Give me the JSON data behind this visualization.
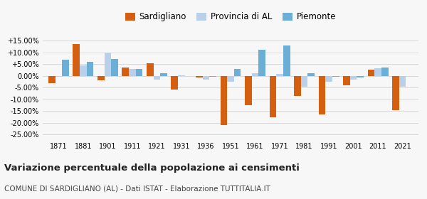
{
  "years": [
    1871,
    1881,
    1901,
    1911,
    1921,
    1931,
    1936,
    1951,
    1961,
    1971,
    1981,
    1991,
    2001,
    2011,
    2021
  ],
  "sardigliano": [
    -3.0,
    13.5,
    -2.0,
    3.5,
    5.2,
    -5.8,
    -0.8,
    -21.0,
    -12.5,
    -17.5,
    -8.5,
    -16.5,
    -4.0,
    2.5,
    -14.5
  ],
  "provincia_al": [
    -0.5,
    4.5,
    9.8,
    2.8,
    -1.5,
    0.2,
    -1.5,
    -2.5,
    1.2,
    0.8,
    -4.5,
    -2.5,
    -1.5,
    3.2,
    -4.5
  ],
  "piemonte": [
    6.8,
    5.8,
    7.0,
    3.0,
    1.0,
    0.0,
    -0.5,
    3.0,
    11.0,
    12.8,
    1.0,
    -0.5,
    -0.8,
    3.5,
    0.0
  ],
  "color_sardigliano": "#d45f10",
  "color_provincia": "#b8d0ea",
  "color_piemonte": "#6baed6",
  "title": "Variazione percentuale della popolazione ai censimenti",
  "subtitle": "COMUNE DI SARDIGLIANO (AL) - Dati ISTAT - Elaborazione TUTTITALIA.IT",
  "ylim": [
    -27,
    17
  ],
  "yticks": [
    -25.0,
    -20.0,
    -15.0,
    -10.0,
    -5.0,
    0.0,
    5.0,
    10.0,
    15.0
  ],
  "ytick_labels": [
    "-25.00%",
    "-20.00%",
    "-15.00%",
    "-10.00%",
    "-5.00%",
    "0.00%",
    "+5.00%",
    "+10.00%",
    "+15.00%"
  ],
  "bar_width": 0.28,
  "legend_labels": [
    "Sardigliano",
    "Provincia di AL",
    "Piemonte"
  ],
  "background_color": "#f7f7f7"
}
